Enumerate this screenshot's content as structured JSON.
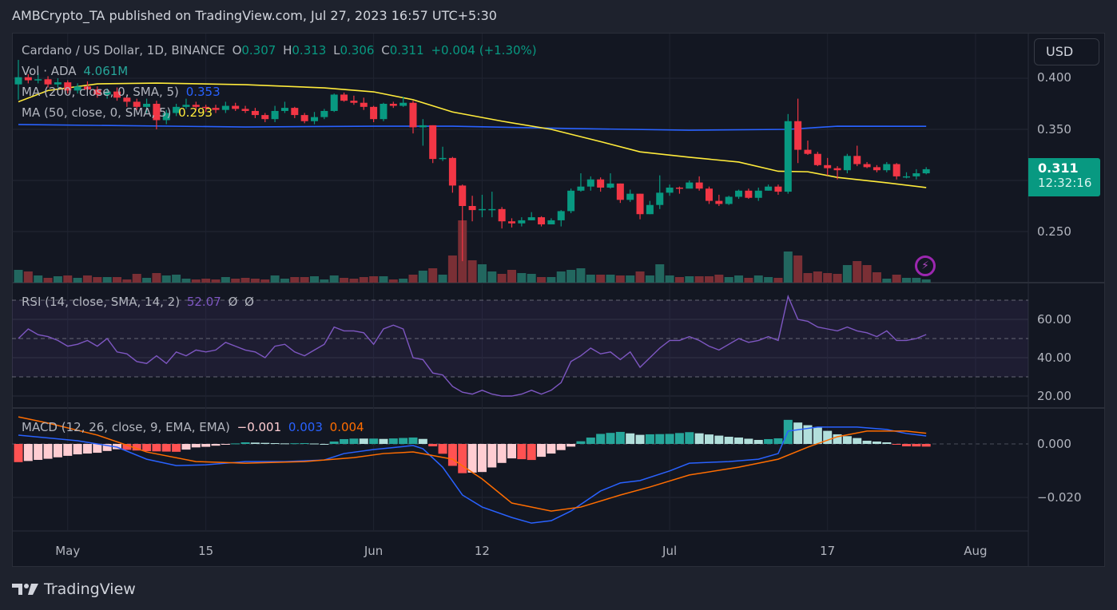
{
  "header": {
    "published": "AMBCrypto_TA published on TradingView.com, Jul 27, 2023 16:57 UTC+5:30"
  },
  "legend": {
    "symbol": "Cardano / US Dollar, 1D, BINANCE",
    "o_label": "O",
    "o": "0.307",
    "h_label": "H",
    "h": "0.313",
    "l_label": "L",
    "l": "0.306",
    "c_label": "C",
    "c": "0.311",
    "change": "+0.004 (+1.30%)",
    "vol_label": "Vol · ADA",
    "vol": "4.061M",
    "ma200_label": "MA (200, close, 0, SMA, 5)",
    "ma200": "0.353",
    "ma50_label": "MA (50, close, 0, SMA, 5)",
    "ma50": "0.293",
    "rsi_label": "RSI (14, close, SMA, 14, 2)",
    "rsi": "52.07",
    "rsi_na1": "Ø",
    "rsi_na2": "Ø",
    "macd_label": "MACD (12, 26, close, 9, EMA, EMA)",
    "macd_hist": "−0.001",
    "macd": "0.003",
    "macd_signal": "0.004"
  },
  "price_axis": {
    "currency": "USD",
    "ticks": [
      "0.400",
      "0.350",
      "0.250"
    ],
    "current_price": "0.311",
    "countdown": "12:32:16"
  },
  "rsi_axis": {
    "ticks": [
      "60.00",
      "40.00",
      "20.00"
    ]
  },
  "macd_axis": {
    "ticks": [
      "0.000",
      "−0.020"
    ]
  },
  "footer": {
    "brand": "TradingView"
  },
  "colors": {
    "up": "#089981",
    "down": "#f23645",
    "ma200": "#2962ff",
    "ma50": "#ffeb3b",
    "rsi": "#7e57c2",
    "macd": "#2962ff",
    "signal": "#ff6d00",
    "background": "#131722"
  },
  "chart_data": [
    {
      "type": "candlestick",
      "title": "Cardano / US Dollar, 1D, BINANCE",
      "x_ticks": [
        {
          "label": "May",
          "date": "2023-05-01"
        },
        {
          "label": "15",
          "date": "2023-05-15"
        },
        {
          "label": "Jun",
          "date": "2023-06-01"
        },
        {
          "label": "12",
          "date": "2023-06-12"
        },
        {
          "label": "Jul",
          "date": "2023-07-01"
        },
        {
          "label": "17",
          "date": "2023-07-17"
        },
        {
          "label": "Aug",
          "date": "2023-08-01"
        }
      ],
      "ylim": [
        0.22,
        0.42
      ],
      "y_ticks": [
        0.4,
        0.35,
        0.3,
        0.25
      ],
      "dates": [
        "2023-04-26",
        "2023-04-27",
        "2023-04-28",
        "2023-04-29",
        "2023-04-30",
        "2023-05-01",
        "2023-05-02",
        "2023-05-03",
        "2023-05-04",
        "2023-05-05",
        "2023-05-06",
        "2023-05-07",
        "2023-05-08",
        "2023-05-09",
        "2023-05-10",
        "2023-05-11",
        "2023-05-12",
        "2023-05-13",
        "2023-05-14",
        "2023-05-15",
        "2023-05-16",
        "2023-05-17",
        "2023-05-18",
        "2023-05-19",
        "2023-05-20",
        "2023-05-21",
        "2023-05-22",
        "2023-05-23",
        "2023-05-24",
        "2023-05-25",
        "2023-05-26",
        "2023-05-27",
        "2023-05-28",
        "2023-05-29",
        "2023-05-30",
        "2023-05-31",
        "2023-06-01",
        "2023-06-02",
        "2023-06-03",
        "2023-06-04",
        "2023-06-05",
        "2023-06-06",
        "2023-06-07",
        "2023-06-08",
        "2023-06-09",
        "2023-06-10",
        "2023-06-11",
        "2023-06-12",
        "2023-06-13",
        "2023-06-14",
        "2023-06-15",
        "2023-06-16",
        "2023-06-17",
        "2023-06-18",
        "2023-06-19",
        "2023-06-20",
        "2023-06-21",
        "2023-06-22",
        "2023-06-23",
        "2023-06-24",
        "2023-06-25",
        "2023-06-26",
        "2023-06-27",
        "2023-06-28",
        "2023-06-29",
        "2023-06-30",
        "2023-07-01",
        "2023-07-02",
        "2023-07-03",
        "2023-07-04",
        "2023-07-05",
        "2023-07-06",
        "2023-07-07",
        "2023-07-08",
        "2023-07-09",
        "2023-07-10",
        "2023-07-11",
        "2023-07-12",
        "2023-07-13",
        "2023-07-14",
        "2023-07-15",
        "2023-07-16",
        "2023-07-17",
        "2023-07-18",
        "2023-07-19",
        "2023-07-20",
        "2023-07-21",
        "2023-07-22",
        "2023-07-23",
        "2023-07-24",
        "2023-07-25",
        "2023-07-26",
        "2023-07-27"
      ],
      "open": [
        0.394,
        0.401,
        0.398,
        0.399,
        0.394,
        0.396,
        0.388,
        0.392,
        0.389,
        0.384,
        0.387,
        0.381,
        0.377,
        0.372,
        0.375,
        0.359,
        0.366,
        0.372,
        0.374,
        0.372,
        0.371,
        0.369,
        0.373,
        0.37,
        0.368,
        0.364,
        0.36,
        0.368,
        0.371,
        0.364,
        0.358,
        0.362,
        0.368,
        0.384,
        0.378,
        0.376,
        0.372,
        0.36,
        0.375,
        0.373,
        0.376,
        0.352,
        0.354,
        0.321,
        0.322,
        0.295,
        0.275,
        0.271,
        0.272,
        0.272,
        0.26,
        0.258,
        0.261,
        0.264,
        0.257,
        0.261,
        0.27,
        0.29,
        0.294,
        0.301,
        0.293,
        0.297,
        0.281,
        0.287,
        0.267,
        0.276,
        0.288,
        0.293,
        0.292,
        0.298,
        0.292,
        0.28,
        0.277,
        0.284,
        0.29,
        0.283,
        0.29,
        0.294,
        0.289,
        0.358,
        0.33,
        0.326,
        0.315,
        0.312,
        0.31,
        0.324,
        0.316,
        0.313,
        0.31,
        0.316,
        0.304,
        0.304,
        0.307
      ],
      "high": [
        0.418,
        0.404,
        0.405,
        0.402,
        0.4,
        0.398,
        0.395,
        0.397,
        0.392,
        0.39,
        0.391,
        0.384,
        0.38,
        0.38,
        0.378,
        0.369,
        0.375,
        0.38,
        0.377,
        0.374,
        0.374,
        0.377,
        0.376,
        0.373,
        0.371,
        0.366,
        0.373,
        0.377,
        0.372,
        0.366,
        0.367,
        0.37,
        0.385,
        0.386,
        0.383,
        0.381,
        0.373,
        0.376,
        0.377,
        0.382,
        0.378,
        0.36,
        0.354,
        0.333,
        0.323,
        0.296,
        0.285,
        0.286,
        0.289,
        0.274,
        0.263,
        0.264,
        0.269,
        0.265,
        0.263,
        0.271,
        0.292,
        0.307,
        0.304,
        0.303,
        0.307,
        0.297,
        0.291,
        0.287,
        0.28,
        0.305,
        0.296,
        0.294,
        0.3,
        0.304,
        0.294,
        0.286,
        0.285,
        0.291,
        0.292,
        0.293,
        0.296,
        0.296,
        0.365,
        0.38,
        0.339,
        0.328,
        0.322,
        0.314,
        0.326,
        0.334,
        0.318,
        0.315,
        0.318,
        0.317,
        0.308,
        0.311,
        0.313
      ],
      "low": [
        0.379,
        0.395,
        0.395,
        0.391,
        0.391,
        0.385,
        0.385,
        0.386,
        0.381,
        0.38,
        0.378,
        0.372,
        0.369,
        0.366,
        0.35,
        0.355,
        0.363,
        0.37,
        0.369,
        0.367,
        0.366,
        0.366,
        0.368,
        0.366,
        0.361,
        0.357,
        0.357,
        0.366,
        0.361,
        0.356,
        0.355,
        0.36,
        0.367,
        0.377,
        0.374,
        0.369,
        0.357,
        0.358,
        0.371,
        0.372,
        0.346,
        0.334,
        0.317,
        0.319,
        0.288,
        0.221,
        0.26,
        0.264,
        0.264,
        0.253,
        0.254,
        0.255,
        0.261,
        0.255,
        0.258,
        0.255,
        0.268,
        0.289,
        0.29,
        0.289,
        0.292,
        0.278,
        0.279,
        0.262,
        0.267,
        0.272,
        0.285,
        0.287,
        0.293,
        0.29,
        0.277,
        0.275,
        0.276,
        0.282,
        0.282,
        0.28,
        0.29,
        0.286,
        0.287,
        0.317,
        0.325,
        0.314,
        0.305,
        0.301,
        0.307,
        0.314,
        0.312,
        0.308,
        0.308,
        0.301,
        0.302,
        0.301,
        0.306
      ],
      "close": [
        0.401,
        0.398,
        0.399,
        0.394,
        0.396,
        0.388,
        0.392,
        0.389,
        0.384,
        0.387,
        0.381,
        0.377,
        0.372,
        0.375,
        0.359,
        0.366,
        0.372,
        0.374,
        0.372,
        0.371,
        0.369,
        0.373,
        0.37,
        0.368,
        0.364,
        0.36,
        0.368,
        0.371,
        0.364,
        0.358,
        0.362,
        0.368,
        0.384,
        0.378,
        0.376,
        0.372,
        0.36,
        0.375,
        0.373,
        0.376,
        0.352,
        0.354,
        0.321,
        0.322,
        0.295,
        0.275,
        0.271,
        0.272,
        0.272,
        0.26,
        0.258,
        0.261,
        0.264,
        0.257,
        0.261,
        0.27,
        0.29,
        0.294,
        0.301,
        0.293,
        0.297,
        0.281,
        0.287,
        0.267,
        0.276,
        0.288,
        0.293,
        0.292,
        0.298,
        0.292,
        0.28,
        0.277,
        0.284,
        0.29,
        0.283,
        0.29,
        0.294,
        0.289,
        0.358,
        0.33,
        0.326,
        0.315,
        0.312,
        0.31,
        0.324,
        0.316,
        0.313,
        0.31,
        0.316,
        0.304,
        0.304,
        0.307,
        0.311
      ],
      "volume_millions": [
        16,
        14,
        9,
        6,
        8,
        9,
        6,
        9,
        7,
        7,
        7,
        4,
        11,
        6,
        12,
        9,
        10,
        5,
        4,
        5,
        4,
        7,
        5,
        6,
        5,
        4,
        9,
        5,
        7,
        7,
        8,
        4,
        9,
        6,
        5,
        7,
        8,
        8,
        4,
        5,
        10,
        15,
        18,
        10,
        34,
        78,
        28,
        23,
        14,
        11,
        16,
        12,
        11,
        7,
        7,
        14,
        16,
        18,
        10,
        10,
        10,
        9,
        9,
        14,
        9,
        23,
        9,
        7,
        8,
        8,
        8,
        10,
        7,
        9,
        6,
        9,
        7,
        6,
        39,
        34,
        12,
        14,
        12,
        11,
        22,
        27,
        22,
        13,
        5,
        10,
        6,
        6,
        4.061
      ],
      "ma200": [
        [
          "2023-04-26",
          0.3547
        ],
        [
          "2023-05-19",
          0.3523
        ],
        [
          "2023-06-01",
          0.3531
        ],
        [
          "2023-06-09",
          0.3531
        ],
        [
          "2023-06-21",
          0.3508
        ],
        [
          "2023-07-03",
          0.3492
        ],
        [
          "2023-07-13",
          0.35
        ],
        [
          "2023-07-18",
          0.3531
        ],
        [
          "2023-07-27",
          0.353
        ]
      ],
      "ma50": [
        [
          "2023-04-26",
          0.377
        ],
        [
          "2023-04-29",
          0.388
        ],
        [
          "2023-05-04",
          0.3945
        ],
        [
          "2023-05-10",
          0.3953
        ],
        [
          "2023-05-19",
          0.3937
        ],
        [
          "2023-05-27",
          0.3906
        ],
        [
          "2023-06-01",
          0.3867
        ],
        [
          "2023-06-05",
          0.379
        ],
        [
          "2023-06-09",
          0.367
        ],
        [
          "2023-06-14",
          0.358
        ],
        [
          "2023-06-19",
          0.35
        ],
        [
          "2023-06-24",
          0.338
        ],
        [
          "2023-06-28",
          0.328
        ],
        [
          "2023-07-03",
          0.3227
        ],
        [
          "2023-07-08",
          0.318
        ],
        [
          "2023-07-12",
          0.309
        ],
        [
          "2023-07-15",
          0.3085
        ],
        [
          "2023-07-18",
          0.303
        ],
        [
          "2023-07-23",
          0.2977
        ],
        [
          "2023-07-27",
          0.293
        ]
      ]
    },
    {
      "type": "line",
      "title": "RSI (14, close, SMA, 14, 2)",
      "ylim": [
        14,
        76
      ],
      "y_ticks": [
        60,
        40,
        20
      ],
      "bands": [
        70,
        50,
        30
      ],
      "values": [
        50,
        55,
        52,
        51,
        49,
        46,
        47,
        49,
        46,
        50,
        43,
        42,
        38,
        37,
        41,
        37,
        43,
        41,
        44,
        43,
        44,
        48,
        46,
        44,
        43,
        40,
        46,
        47,
        43,
        41,
        44,
        47,
        56,
        54,
        54,
        53,
        47,
        55,
        57,
        55,
        40,
        39,
        32,
        31,
        25,
        22,
        21,
        23,
        21,
        20,
        20,
        21,
        23,
        21,
        23,
        27,
        38,
        41,
        45,
        42,
        43,
        39,
        43,
        35,
        40,
        45,
        49,
        49,
        51,
        49,
        46,
        44,
        47,
        50,
        48,
        49,
        51,
        49,
        72,
        60,
        59,
        56,
        55,
        54,
        56,
        54,
        53,
        51,
        54,
        49,
        49,
        50,
        52.07
      ]
    },
    {
      "type": "line+bar",
      "title": "MACD (12, 26, close, 9, EMA, EMA)",
      "ylim": [
        -0.032,
        0.012
      ],
      "y_ticks": [
        0.0,
        -0.02
      ],
      "macd": [
        [
          "2023-04-26",
          0.0033
        ],
        [
          "2023-05-02",
          0.0012
        ],
        [
          "2023-05-06",
          -0.0012
        ],
        [
          "2023-05-09",
          -0.0057
        ],
        [
          "2023-05-12",
          -0.0081
        ],
        [
          "2023-05-15",
          -0.0078
        ],
        [
          "2023-05-19",
          -0.0066
        ],
        [
          "2023-05-23",
          -0.0066
        ],
        [
          "2023-05-27",
          -0.006
        ],
        [
          "2023-05-29",
          -0.0036
        ],
        [
          "2023-06-01",
          -0.0021
        ],
        [
          "2023-06-05",
          -0.0006
        ],
        [
          "2023-06-06",
          -0.0018
        ],
        [
          "2023-06-08",
          -0.0087
        ],
        [
          "2023-06-10",
          -0.0191
        ],
        [
          "2023-06-12",
          -0.0236
        ],
        [
          "2023-06-15",
          -0.0275
        ],
        [
          "2023-06-17",
          -0.0296
        ],
        [
          "2023-06-19",
          -0.0287
        ],
        [
          "2023-06-21",
          -0.0251
        ],
        [
          "2023-06-24",
          -0.0176
        ],
        [
          "2023-06-26",
          -0.0146
        ],
        [
          "2023-06-28",
          -0.0137
        ],
        [
          "2023-07-01",
          -0.0101
        ],
        [
          "2023-07-03",
          -0.0072
        ],
        [
          "2023-07-07",
          -0.0066
        ],
        [
          "2023-07-10",
          -0.0057
        ],
        [
          "2023-07-12",
          -0.0036
        ],
        [
          "2023-07-13",
          0.0048
        ],
        [
          "2023-07-16",
          0.0063
        ],
        [
          "2023-07-20",
          0.0063
        ],
        [
          "2023-07-23",
          0.0054
        ],
        [
          "2023-07-25",
          0.0039
        ],
        [
          "2023-07-27",
          0.003
        ]
      ],
      "signal": [
        [
          "2023-04-26",
          0.0101
        ],
        [
          "2023-04-29",
          0.0078
        ],
        [
          "2023-05-04",
          0.0033
        ],
        [
          "2023-05-09",
          -0.003
        ],
        [
          "2023-05-14",
          -0.0066
        ],
        [
          "2023-05-19",
          -0.0072
        ],
        [
          "2023-05-25",
          -0.0066
        ],
        [
          "2023-05-30",
          -0.0051
        ],
        [
          "2023-06-02",
          -0.0036
        ],
        [
          "2023-06-05",
          -0.003
        ],
        [
          "2023-06-09",
          -0.0057
        ],
        [
          "2023-06-12",
          -0.0131
        ],
        [
          "2023-06-15",
          -0.0221
        ],
        [
          "2023-06-19",
          -0.0251
        ],
        [
          "2023-06-22",
          -0.0236
        ],
        [
          "2023-06-26",
          -0.0191
        ],
        [
          "2023-06-29",
          -0.0161
        ],
        [
          "2023-07-03",
          -0.0116
        ],
        [
          "2023-07-08",
          -0.0087
        ],
        [
          "2023-07-12",
          -0.0057
        ],
        [
          "2023-07-15",
          -0.0012
        ],
        [
          "2023-07-18",
          0.0027
        ],
        [
          "2023-07-21",
          0.0048
        ],
        [
          "2023-07-25",
          0.0048
        ],
        [
          "2023-07-27",
          0.004
        ]
      ],
      "histogram": "macd − signal"
    }
  ]
}
